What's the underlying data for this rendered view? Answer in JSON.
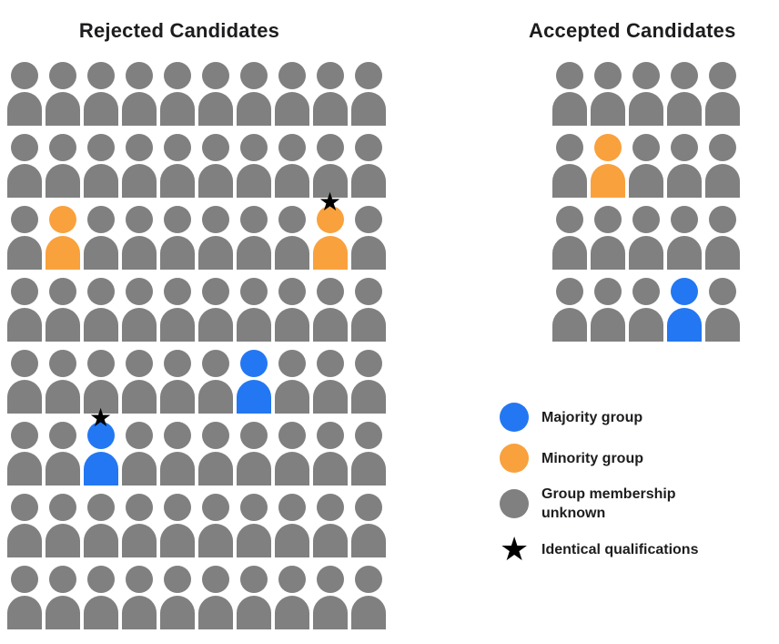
{
  "colors": {
    "majority_blue": "#2377F2",
    "minority_orange": "#F9A13D",
    "unknown_gray": "#808080",
    "star_black": "#000000",
    "text": "#1d1d1f",
    "background": "#ffffff"
  },
  "rejected": {
    "title": "Rejected Candidates",
    "rows": 8,
    "cols": 10,
    "grid": [
      [
        "g",
        "g",
        "g",
        "g",
        "g",
        "g",
        "g",
        "g",
        "g",
        "g"
      ],
      [
        "g",
        "g",
        "g",
        "g",
        "g",
        "g",
        "g",
        "g",
        "g",
        "g"
      ],
      [
        "g",
        "o",
        "g",
        "g",
        "g",
        "g",
        "g",
        "g",
        "o*",
        "g"
      ],
      [
        "g",
        "g",
        "g",
        "g",
        "g",
        "g",
        "g",
        "g",
        "g",
        "g"
      ],
      [
        "g",
        "g",
        "g",
        "g",
        "g",
        "g",
        "b",
        "g",
        "g",
        "g"
      ],
      [
        "g",
        "g",
        "b*",
        "g",
        "g",
        "g",
        "g",
        "g",
        "g",
        "g"
      ],
      [
        "g",
        "g",
        "g",
        "g",
        "g",
        "g",
        "g",
        "g",
        "g",
        "g"
      ],
      [
        "g",
        "g",
        "g",
        "g",
        "g",
        "g",
        "g",
        "g",
        "g",
        "g"
      ]
    ]
  },
  "accepted": {
    "title": "Accepted Candidates",
    "rows": 4,
    "cols": 5,
    "grid": [
      [
        "g",
        "g",
        "g",
        "g",
        "g"
      ],
      [
        "g",
        "o",
        "g",
        "g",
        "g"
      ],
      [
        "g",
        "g",
        "g",
        "g",
        "g"
      ],
      [
        "g",
        "g",
        "g",
        "b",
        "g"
      ]
    ]
  },
  "legend": {
    "star_glyph": "★",
    "items": [
      {
        "icon": "circle",
        "color_key": "majority_blue",
        "label": "Majority group"
      },
      {
        "icon": "circle",
        "color_key": "minority_orange",
        "label": "Minority group"
      },
      {
        "icon": "circle",
        "color_key": "unknown_gray",
        "label": "Group membership unknown"
      },
      {
        "icon": "star",
        "label": "Identical qualifications"
      }
    ]
  },
  "cell_codes": {
    "g": "group-membership-unknown",
    "o": "minority-group",
    "b": "majority-group",
    "*": "identical-qualifications-star"
  }
}
